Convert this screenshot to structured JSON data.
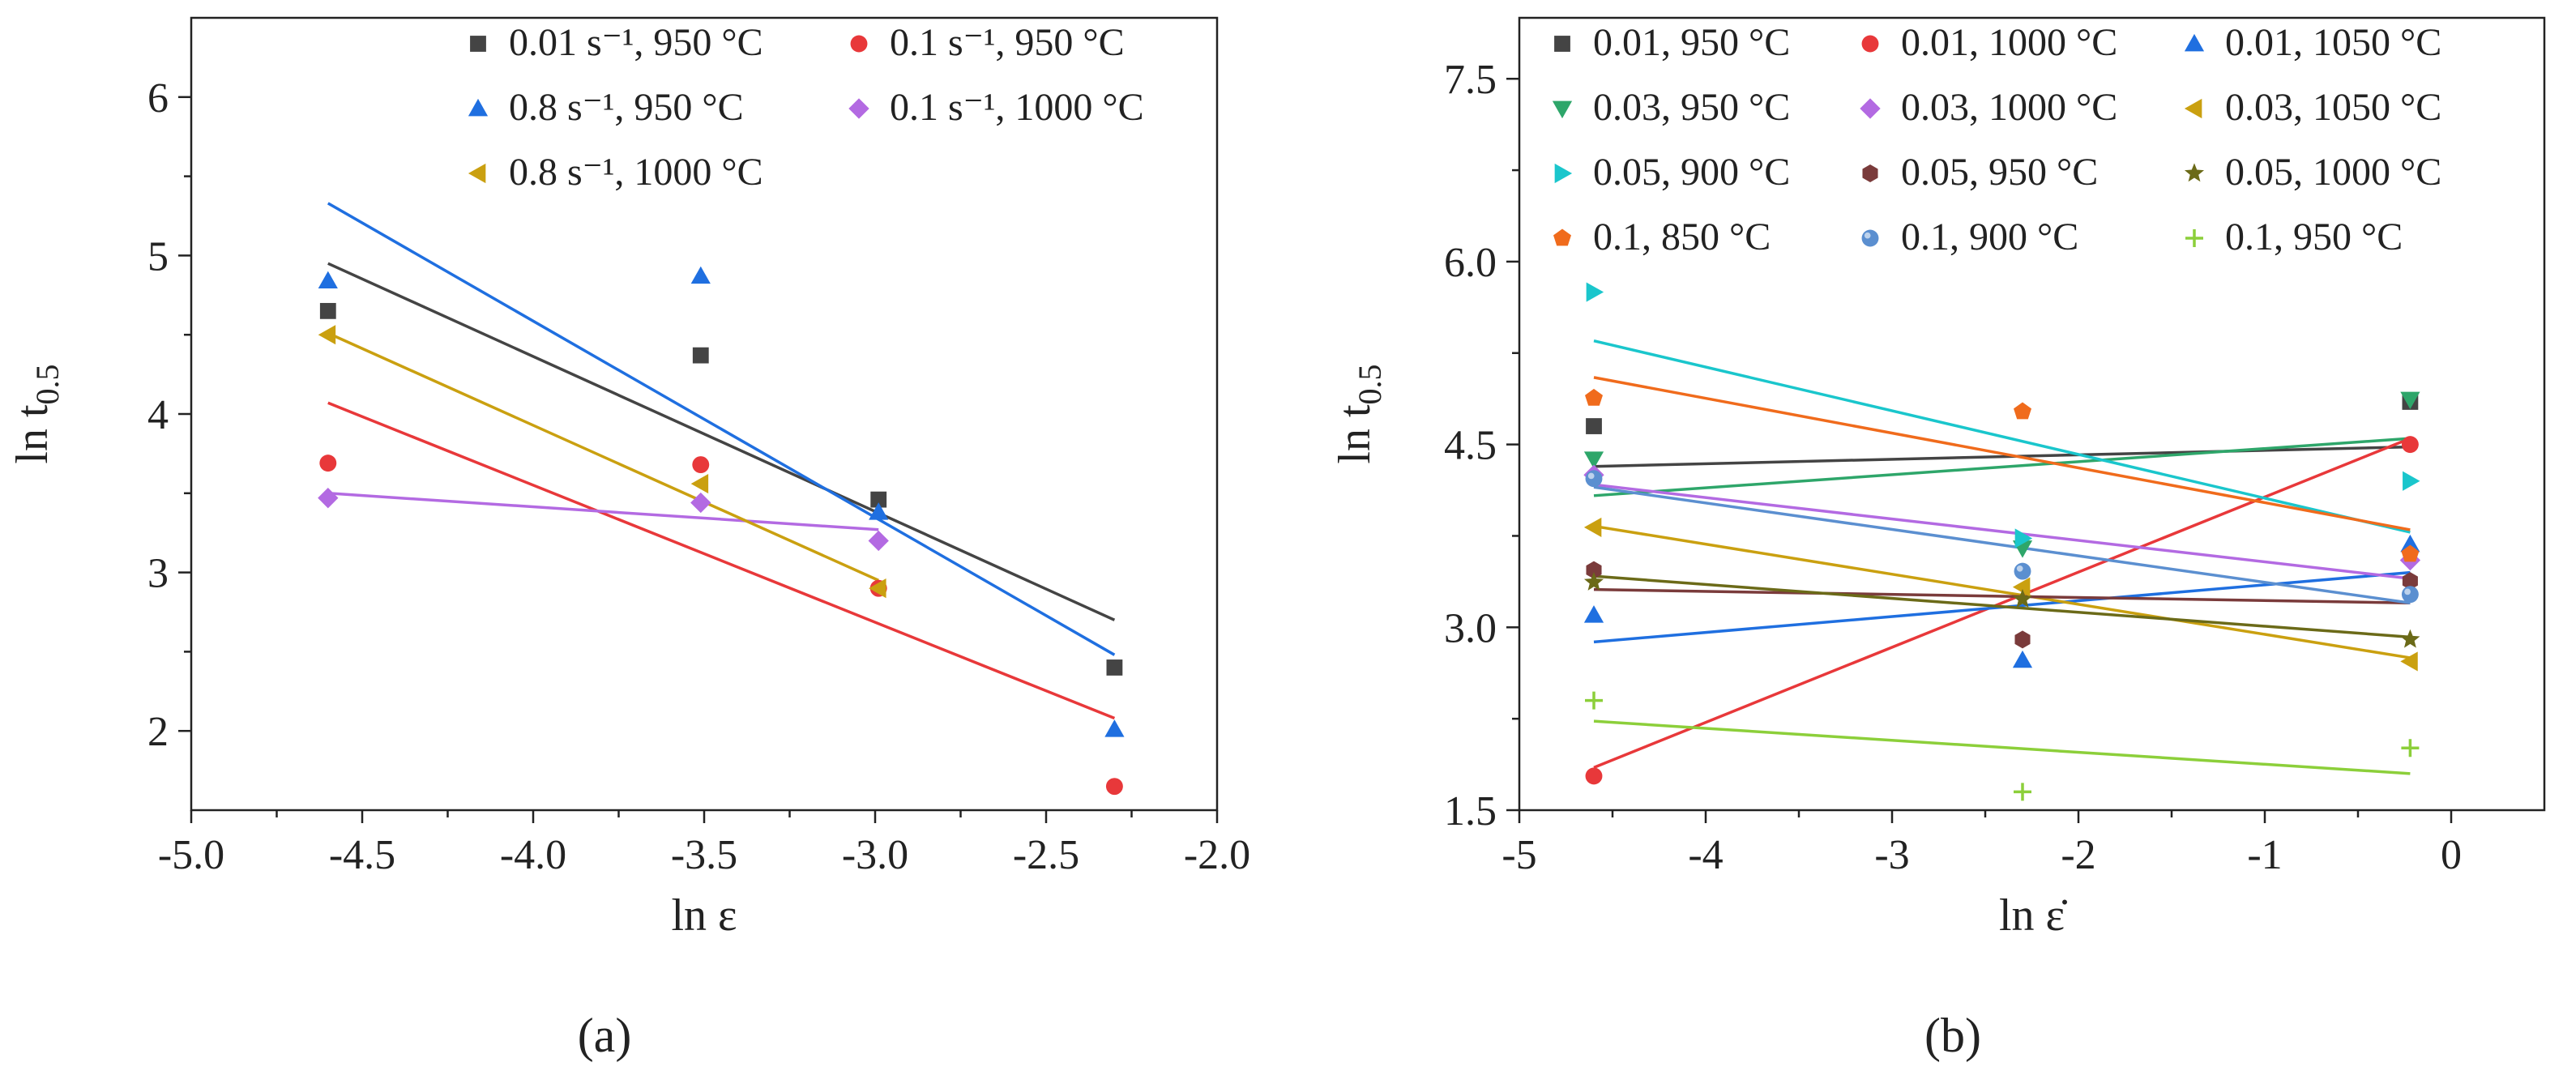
{
  "chart_data": [
    {
      "type": "scatter",
      "panel_label": "(a)",
      "xlabel": "ln ε",
      "ylabel_main": "ln t",
      "ylabel_sub": "0.5",
      "xlim": [
        -5.0,
        -2.0
      ],
      "ylim": [
        1.5,
        6.5
      ],
      "xticks": [
        -5.0,
        -4.5,
        -4.0,
        -3.5,
        -3.0,
        -2.5,
        -2.0
      ],
      "xtick_labels": [
        "-5.0",
        "-4.5",
        "-4.0",
        "-3.5",
        "-3.0",
        "-2.5",
        "-2.0"
      ],
      "yticks": [
        2,
        3,
        4,
        5,
        6
      ],
      "ytick_labels": [
        "2",
        "3",
        "4",
        "5",
        "6"
      ],
      "legend_columns": 2,
      "series": [
        {
          "name": "0.01 s⁻¹, 950 °C",
          "color": "#444444",
          "marker": "square",
          "x": [
            -4.6,
            -3.51,
            -2.99,
            -2.3
          ],
          "y": [
            4.65,
            4.37,
            3.46,
            2.4
          ],
          "fit": [
            [
              -4.6,
              4.95
            ],
            [
              -2.3,
              2.7
            ]
          ]
        },
        {
          "name": "0.1 s⁻¹, 950 °C",
          "color": "#e8383a",
          "marker": "circle",
          "x": [
            -4.6,
            -3.51,
            -2.99,
            -2.3
          ],
          "y": [
            3.69,
            3.68,
            2.9,
            1.65
          ],
          "fit": [
            [
              -4.6,
              4.07
            ],
            [
              -2.3,
              2.08
            ]
          ]
        },
        {
          "name": "0.8 s⁻¹, 950 °C",
          "color": "#1f6fe0",
          "marker": "triangle-up",
          "x": [
            -4.6,
            -3.51,
            -2.99,
            -2.3
          ],
          "y": [
            4.84,
            4.87,
            3.38,
            2.01
          ],
          "fit": [
            [
              -4.6,
              5.33
            ],
            [
              -2.3,
              2.48
            ]
          ]
        },
        {
          "name": "0.1 s⁻¹, 1000 °C",
          "color": "#b36ae2",
          "marker": "diamond",
          "x": [
            -4.6,
            -3.51,
            -2.99
          ],
          "y": [
            3.47,
            3.44,
            3.2
          ],
          "fit": [
            [
              -4.6,
              3.5
            ],
            [
              -2.99,
              3.27
            ]
          ]
        },
        {
          "name": "0.8 s⁻¹, 1000 °C",
          "color": "#caa010",
          "marker": "triangle-left",
          "x": [
            -4.6,
            -3.51,
            -2.99
          ],
          "y": [
            4.5,
            3.56,
            2.9
          ],
          "fit": [
            [
              -4.6,
              4.51
            ],
            [
              -2.99,
              2.95
            ]
          ]
        }
      ]
    },
    {
      "type": "scatter",
      "panel_label": "(b)",
      "xlabel": "ln ε̇",
      "ylabel_main": "ln t",
      "ylabel_sub": "0.5",
      "xlim": [
        -5,
        0.5
      ],
      "ylim": [
        1.5,
        8.0
      ],
      "xticks": [
        -5,
        -4,
        -3,
        -2,
        -1,
        0
      ],
      "xtick_labels": [
        "-5",
        "-4",
        "-3",
        "-2",
        "-1",
        "0"
      ],
      "yticks": [
        1.5,
        3.0,
        4.5,
        6.0,
        7.5
      ],
      "ytick_labels": [
        "1.5",
        "3.0",
        "4.5",
        "6.0",
        "7.5"
      ],
      "legend_columns": 3,
      "series": [
        {
          "name": "0.01, 950 °C",
          "color": "#444444",
          "marker": "square",
          "x": [
            -4.6,
            -0.22
          ],
          "y": [
            4.65,
            4.85
          ],
          "fit": [
            [
              -4.6,
              4.32
            ],
            [
              -0.22,
              4.48
            ]
          ]
        },
        {
          "name": "0.01, 1000 °C",
          "color": "#e8383a",
          "marker": "circle",
          "x": [
            -4.6,
            -0.22
          ],
          "y": [
            1.78,
            4.5
          ],
          "fit": [
            [
              -4.6,
              1.85
            ],
            [
              -0.22,
              4.55
            ]
          ]
        },
        {
          "name": "0.01, 1050 °C",
          "color": "#1f6fe0",
          "marker": "triangle-up",
          "x": [
            -4.6,
            -2.3,
            -0.22
          ],
          "y": [
            3.1,
            2.73,
            3.68
          ],
          "fit": [
            [
              -4.6,
              2.88
            ],
            [
              -0.22,
              3.45
            ]
          ]
        },
        {
          "name": "0.03, 950 °C",
          "color": "#2ea66a",
          "marker": "triangle-down",
          "x": [
            -4.6,
            -2.3,
            -0.22
          ],
          "y": [
            4.38,
            3.65,
            4.87
          ],
          "fit": [
            [
              -4.6,
              4.08
            ],
            [
              -0.22,
              4.55
            ]
          ]
        },
        {
          "name": "0.03, 1000 °C",
          "color": "#b36ae2",
          "marker": "diamond",
          "x": [
            -4.6,
            -0.22
          ],
          "y": [
            4.25,
            3.55
          ],
          "fit": [
            [
              -4.6,
              4.17
            ],
            [
              -0.22,
              3.4
            ]
          ]
        },
        {
          "name": "0.03, 1050 °C",
          "color": "#caa010",
          "marker": "triangle-left",
          "x": [
            -4.6,
            -2.3,
            -0.22
          ],
          "y": [
            3.82,
            3.33,
            2.72
          ],
          "fit": [
            [
              -4.6,
              3.83
            ],
            [
              -0.22,
              2.75
            ]
          ]
        },
        {
          "name": "0.05, 900 °C",
          "color": "#1ac6cc",
          "marker": "triangle-right",
          "x": [
            -4.6,
            -2.3,
            -0.22
          ],
          "y": [
            5.75,
            3.73,
            4.2
          ],
          "fit": [
            [
              -4.6,
              5.35
            ],
            [
              -0.22,
              3.78
            ]
          ]
        },
        {
          "name": "0.05, 950 °C",
          "color": "#7a3b3b",
          "marker": "hexagon",
          "x": [
            -4.6,
            -2.3,
            -0.22
          ],
          "y": [
            3.47,
            2.9,
            3.38
          ],
          "fit": [
            [
              -4.6,
              3.31
            ],
            [
              -0.22,
              3.2
            ]
          ]
        },
        {
          "name": "0.05, 1000 °C",
          "color": "#6b6a18",
          "marker": "star",
          "x": [
            -4.6,
            -2.3,
            -0.22
          ],
          "y": [
            3.37,
            3.23,
            2.9
          ],
          "fit": [
            [
              -4.6,
              3.42
            ],
            [
              -0.22,
              2.92
            ]
          ]
        },
        {
          "name": "0.1, 850 °C",
          "color": "#f06b1c",
          "marker": "pentagon",
          "x": [
            -4.6,
            -2.3,
            -0.22
          ],
          "y": [
            4.88,
            4.77,
            3.6
          ],
          "fit": [
            [
              -4.6,
              5.05
            ],
            [
              -0.22,
              3.8
            ]
          ]
        },
        {
          "name": "0.1, 900 °C",
          "color": "#5b8fd0",
          "marker": "sphere",
          "x": [
            -4.6,
            -2.3,
            -0.22
          ],
          "y": [
            4.22,
            3.46,
            3.27
          ],
          "fit": [
            [
              -4.6,
              4.15
            ],
            [
              -0.22,
              3.2
            ]
          ]
        },
        {
          "name": "0.1, 950 °C",
          "color": "#8ccf3a",
          "marker": "plus",
          "x": [
            -4.6,
            -2.3,
            -0.22
          ],
          "y": [
            2.4,
            1.65,
            2.01
          ],
          "fit": [
            [
              -4.6,
              2.23
            ],
            [
              -0.22,
              1.8
            ]
          ]
        }
      ]
    }
  ]
}
